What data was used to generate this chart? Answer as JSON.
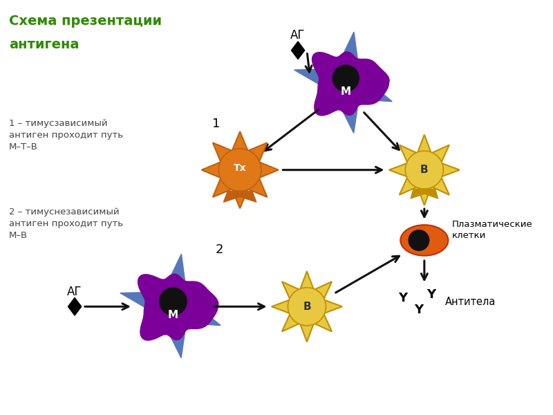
{
  "title_line1": "Схема презентации",
  "title_line2": "антигена",
  "title_color": "#2d8a00",
  "bg_color": "#ffffff",
  "label1": "1 – тимусзависимый\nантиген проходит путь\nМ–Т–В",
  "label2": "2 – тимуснезависимый\nантиген проходит путь\nМ–В",
  "ag_label": "АГ",
  "antibody_label": "Антитела",
  "plasma_label": "Плазматические\nклетки",
  "num1": "1",
  "num2": "2",
  "macrophage_color": "#7b0099",
  "spike_color": "#5577bb",
  "nucleus_color": "#111111",
  "Tx_color": "#e07818",
  "Tx_inner": "#d06010",
  "B_color": "#e8c840",
  "B_inner": "#d4aa30",
  "B_border": "#c09000",
  "plasma_cell_color": "#e05a10",
  "plasma_nucleus_color": "#111111",
  "arrow_color": "#111111",
  "text_color": "#444444"
}
